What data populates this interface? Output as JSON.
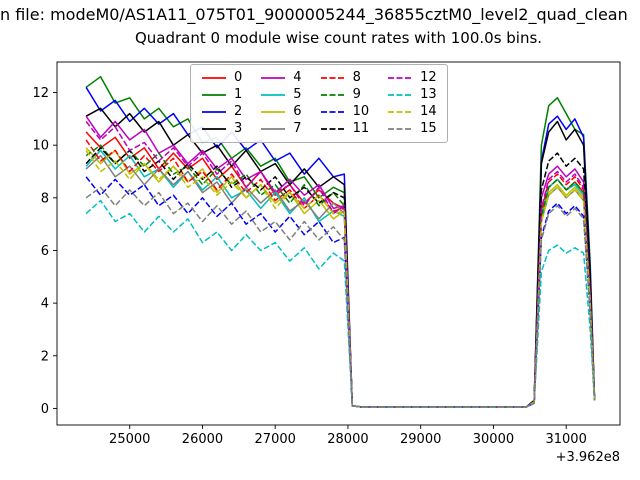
{
  "title": "n file: modeM0/AS1A11_075T01_9000005244_36855cztM0_level2_quad_clean",
  "subtitle": "Quadrant 0 module wise count rates with 100.0s bins.",
  "chart_data": {
    "type": "line",
    "title": "Quadrant 0 module wise count rates with 100.0s bins.",
    "xlabel": "",
    "ylabel": "",
    "x_offset": "+3.962e8",
    "xlim": [
      24000,
      31740
    ],
    "ylim": [
      -0.63,
      13.16
    ],
    "x_ticks": [
      25000,
      26000,
      27000,
      28000,
      29000,
      30000,
      31000
    ],
    "y_ticks": [
      0,
      2,
      4,
      6,
      8,
      10,
      12
    ],
    "legend_position": "upper center",
    "grid": false,
    "x": [
      24400,
      24600,
      24800,
      25000,
      25200,
      25400,
      25600,
      25800,
      26000,
      26200,
      26400,
      26600,
      26800,
      27000,
      27200,
      27400,
      27600,
      27800,
      27950,
      28060,
      28200,
      30450,
      30560,
      30660,
      30760,
      30880,
      31000,
      31120,
      31240,
      31330,
      31390
    ],
    "series": [
      {
        "name": "0",
        "color": "#ff0000",
        "style": "solid",
        "y": [
          10.5,
          9.9,
          10.3,
          9.5,
          9.9,
          9.1,
          9.7,
          9.1,
          9.5,
          8.7,
          9.2,
          8.4,
          9.0,
          8.1,
          8.5,
          7.8,
          8.3,
          7.8,
          7.6,
          0.1,
          0.05,
          0.05,
          0.25,
          7.3,
          8.4,
          8.7,
          8.3,
          8.6,
          8.2,
          4.2,
          0.35
        ]
      },
      {
        "name": "1",
        "color": "#008000",
        "style": "solid",
        "y": [
          12.2,
          12.6,
          11.6,
          11.8,
          11.0,
          11.4,
          10.7,
          11.0,
          10.1,
          10.3,
          9.5,
          9.9,
          9.2,
          9.5,
          8.6,
          8.8,
          8.0,
          8.4,
          8.2,
          0.1,
          0.05,
          0.05,
          0.3,
          10.0,
          11.5,
          11.8,
          11.2,
          10.6,
          10.4,
          5.5,
          0.4
        ]
      },
      {
        "name": "2",
        "color": "#0000ff",
        "style": "solid",
        "y": [
          12.2,
          11.3,
          11.7,
          10.9,
          11.4,
          10.8,
          11.2,
          10.4,
          10.7,
          9.9,
          10.5,
          9.8,
          10.2,
          9.4,
          9.7,
          8.9,
          9.5,
          8.8,
          8.9,
          0.1,
          0.05,
          0.05,
          0.3,
          9.4,
          10.8,
          11.1,
          10.6,
          11.0,
          10.3,
          5.2,
          0.4
        ]
      },
      {
        "name": "3",
        "color": "#000000",
        "style": "solid",
        "y": [
          11.1,
          11.4,
          10.7,
          11.2,
          10.5,
          10.9,
          10.0,
          10.4,
          9.7,
          10.0,
          9.2,
          9.8,
          9.0,
          9.3,
          8.5,
          9.1,
          8.4,
          8.8,
          8.5,
          0.1,
          0.05,
          0.05,
          0.3,
          9.3,
          10.5,
          10.9,
          10.2,
          10.6,
          10.0,
          5.0,
          0.4
        ]
      },
      {
        "name": "4",
        "color": "#bf00bf",
        "style": "solid",
        "y": [
          11.1,
          10.3,
          10.9,
          10.2,
          10.6,
          9.7,
          10.0,
          9.3,
          9.8,
          9.1,
          9.5,
          8.7,
          9.0,
          8.2,
          8.7,
          8.1,
          8.5,
          7.6,
          7.7,
          0.1,
          0.05,
          0.05,
          0.25,
          8.0,
          8.9,
          9.2,
          8.8,
          9.1,
          8.6,
          4.4,
          0.35
        ]
      },
      {
        "name": "5",
        "color": "#00bfbf",
        "style": "solid",
        "y": [
          9.2,
          9.8,
          9.1,
          9.6,
          8.8,
          9.1,
          8.4,
          9.0,
          8.3,
          8.8,
          8.0,
          8.3,
          7.6,
          8.2,
          7.4,
          8.0,
          7.1,
          7.5,
          7.3,
          0.1,
          0.05,
          0.05,
          0.25,
          7.4,
          8.4,
          8.7,
          8.3,
          8.5,
          8.1,
          4.1,
          0.3
        ]
      },
      {
        "name": "6",
        "color": "#bfbf00",
        "style": "solid",
        "y": [
          9.9,
          9.3,
          9.8,
          8.9,
          9.3,
          8.6,
          9.2,
          8.6,
          9.1,
          8.2,
          8.8,
          8.0,
          8.5,
          7.8,
          8.2,
          7.4,
          7.9,
          7.2,
          7.5,
          0.1,
          0.05,
          0.05,
          0.25,
          7.2,
          8.2,
          8.5,
          8.1,
          8.4,
          8.0,
          4.0,
          0.3
        ]
      },
      {
        "name": "7",
        "color": "#7f7f7f",
        "style": "solid",
        "y": [
          9.1,
          9.6,
          8.8,
          9.2,
          8.5,
          9.1,
          8.5,
          9.0,
          8.2,
          8.6,
          7.8,
          8.4,
          7.8,
          8.3,
          7.5,
          7.9,
          7.2,
          7.8,
          7.4,
          0.1,
          0.05,
          0.05,
          0.25,
          7.1,
          8.1,
          8.4,
          8.0,
          8.3,
          7.9,
          4.0,
          0.3
        ]
      },
      {
        "name": "8",
        "color": "#ff0000",
        "style": "dashed",
        "y": [
          10.2,
          9.4,
          9.8,
          9.0,
          9.6,
          9.0,
          9.5,
          8.6,
          9.0,
          8.3,
          8.9,
          8.2,
          8.7,
          7.9,
          8.3,
          7.6,
          8.1,
          7.5,
          7.6,
          0.1,
          0.05,
          0.05,
          0.25,
          7.5,
          8.6,
          8.9,
          8.5,
          8.8,
          8.3,
          4.2,
          0.35
        ]
      },
      {
        "name": "9",
        "color": "#008000",
        "style": "dashed",
        "y": [
          9.6,
          10.0,
          9.3,
          9.8,
          9.2,
          9.7,
          8.9,
          9.2,
          8.5,
          9.1,
          8.5,
          8.9,
          8.1,
          8.5,
          7.8,
          8.5,
          7.7,
          8.2,
          7.7,
          0.1,
          0.05,
          0.05,
          0.25,
          7.3,
          8.4,
          8.7,
          8.3,
          8.6,
          8.2,
          4.1,
          0.3
        ]
      },
      {
        "name": "10",
        "color": "#0000ff",
        "style": "dashed",
        "y": [
          8.8,
          8.1,
          8.7,
          8.1,
          8.5,
          7.7,
          8.1,
          7.4,
          8.0,
          7.3,
          7.8,
          7.0,
          7.4,
          6.7,
          7.3,
          6.6,
          7.1,
          6.3,
          6.5,
          0.1,
          0.05,
          0.05,
          0.2,
          6.5,
          7.5,
          7.8,
          7.4,
          7.7,
          7.3,
          3.7,
          0.3
        ]
      },
      {
        "name": "11",
        "color": "#000000",
        "style": "dashed",
        "y": [
          9.3,
          9.9,
          9.3,
          9.8,
          9.0,
          9.4,
          8.7,
          9.3,
          8.7,
          9.2,
          8.4,
          8.8,
          8.3,
          8.8,
          8.0,
          8.4,
          7.8,
          8.2,
          8.0,
          0.1,
          0.05,
          0.05,
          0.3,
          8.3,
          9.4,
          9.7,
          9.2,
          9.5,
          9.1,
          4.6,
          0.35
        ]
      },
      {
        "name": "12",
        "color": "#bf00bf",
        "style": "dashed",
        "y": [
          10.9,
          10.2,
          10.7,
          9.8,
          10.1,
          9.4,
          9.9,
          9.2,
          9.7,
          8.9,
          9.4,
          8.4,
          9.0,
          8.2,
          8.5,
          7.7,
          8.4,
          7.4,
          7.7,
          0.1,
          0.05,
          0.05,
          0.25,
          7.6,
          8.7,
          9.0,
          8.6,
          8.9,
          8.4,
          4.3,
          0.35
        ]
      },
      {
        "name": "13",
        "color": "#00bfbf",
        "style": "dashed",
        "y": [
          7.4,
          7.9,
          7.1,
          7.4,
          6.7,
          7.3,
          6.7,
          7.2,
          6.3,
          6.7,
          6.0,
          6.6,
          6.0,
          6.3,
          5.6,
          6.1,
          5.3,
          5.9,
          5.6,
          0.1,
          0.05,
          0.05,
          0.2,
          5.2,
          6.0,
          6.2,
          5.9,
          6.1,
          5.9,
          3.0,
          0.25
        ]
      },
      {
        "name": "14",
        "color": "#bfbf00",
        "style": "dashed",
        "y": [
          9.8,
          9.0,
          9.4,
          8.7,
          9.3,
          8.7,
          9.2,
          8.4,
          8.8,
          8.1,
          8.6,
          8.0,
          8.5,
          7.6,
          8.2,
          7.6,
          8.1,
          7.4,
          7.5,
          0.1,
          0.05,
          0.05,
          0.25,
          7.1,
          8.1,
          8.4,
          8.0,
          8.3,
          7.9,
          4.0,
          0.3
        ]
      },
      {
        "name": "15",
        "color": "#7f7f7f",
        "style": "dashed",
        "y": [
          8.0,
          8.4,
          7.7,
          8.3,
          7.7,
          8.2,
          7.4,
          7.8,
          7.1,
          7.7,
          7.0,
          7.5,
          6.7,
          7.1,
          6.4,
          7.1,
          6.4,
          6.9,
          6.4,
          0.1,
          0.05,
          0.05,
          0.2,
          6.4,
          7.4,
          7.7,
          7.3,
          7.6,
          7.2,
          3.6,
          0.3
        ]
      }
    ]
  }
}
